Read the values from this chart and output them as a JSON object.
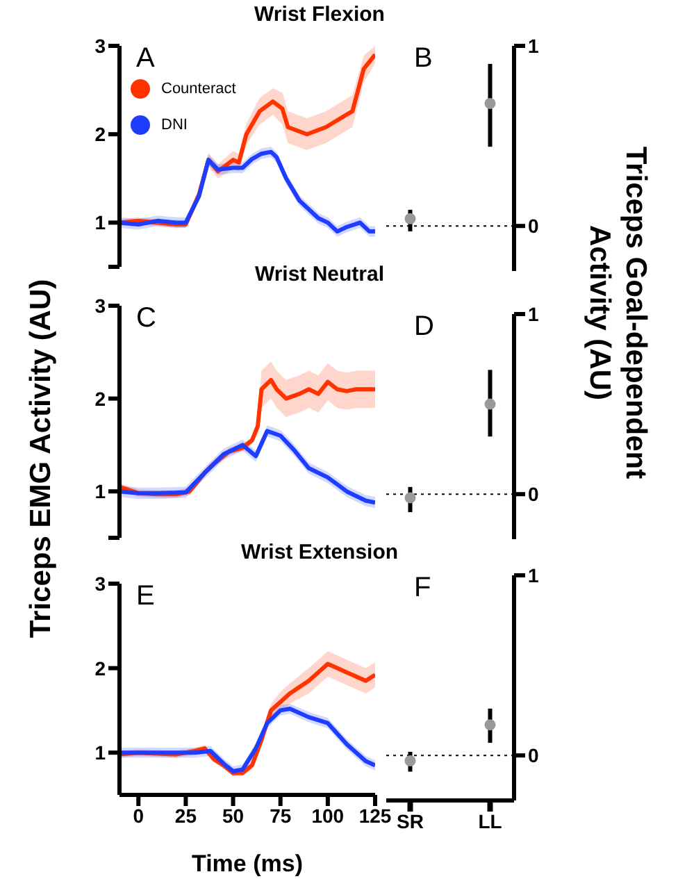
{
  "chart_data": [
    {
      "type": "line",
      "title": "Wrist Flexion",
      "xlim": [
        -10,
        125
      ],
      "ylim": [
        0.5,
        3
      ],
      "yticks": [
        {
          "value": 0.5,
          "label": null
        },
        1,
        2,
        3
      ],
      "tick_labels": "y",
      "legend": "top left",
      "annotations": [
        "A"
      ],
      "series": [
        {
          "name": "Counteract",
          "color": "#ff3300",
          "x": [
            -10,
            0,
            10,
            20,
            25,
            32,
            37,
            42,
            50,
            53,
            57,
            64,
            71,
            76,
            79,
            89,
            99,
            109,
            113,
            119,
            125
          ],
          "values": [
            1.0,
            1.02,
            1.0,
            0.98,
            0.98,
            1.32,
            1.71,
            1.58,
            1.71,
            1.68,
            2.0,
            2.26,
            2.37,
            2.29,
            2.08,
            2.0,
            2.08,
            2.21,
            2.26,
            2.74,
            2.9
          ],
          "lower": [
            0.96,
            0.98,
            0.96,
            0.94,
            0.94,
            1.26,
            1.63,
            1.5,
            1.61,
            1.58,
            1.88,
            2.11,
            2.22,
            2.11,
            1.9,
            1.82,
            1.9,
            2.03,
            2.08,
            2.59,
            2.8
          ],
          "upper": [
            1.04,
            1.06,
            1.04,
            1.02,
            1.02,
            1.38,
            1.79,
            1.66,
            1.81,
            1.78,
            2.12,
            2.41,
            2.52,
            2.47,
            2.26,
            2.18,
            2.26,
            2.39,
            2.44,
            2.89,
            3.0
          ]
        },
        {
          "name": "DNI",
          "color": "#1f3dff",
          "x": [
            -10,
            0,
            10,
            20,
            25,
            32,
            37,
            42,
            50,
            55,
            60,
            65,
            70,
            73,
            78,
            85,
            95,
            100,
            105,
            110,
            117,
            122,
            125
          ],
          "values": [
            1.0,
            0.98,
            1.02,
            1.0,
            1.0,
            1.3,
            1.71,
            1.6,
            1.62,
            1.62,
            1.72,
            1.78,
            1.8,
            1.74,
            1.5,
            1.25,
            1.05,
            1.0,
            0.9,
            0.95,
            1.0,
            0.9,
            0.9
          ],
          "lower": [
            0.94,
            0.92,
            0.96,
            0.94,
            0.94,
            1.24,
            1.65,
            1.54,
            1.56,
            1.56,
            1.66,
            1.72,
            1.74,
            1.68,
            1.44,
            1.19,
            0.99,
            0.94,
            0.84,
            0.89,
            0.94,
            0.84,
            0.84
          ],
          "upper": [
            1.06,
            1.04,
            1.08,
            1.06,
            1.06,
            1.36,
            1.77,
            1.66,
            1.68,
            1.68,
            1.78,
            1.84,
            1.86,
            1.8,
            1.56,
            1.31,
            1.11,
            1.06,
            0.96,
            1.01,
            1.06,
            0.96,
            0.96
          ]
        }
      ]
    },
    {
      "type": "scatter",
      "categories": [
        null,
        null
      ],
      "values": [
        0.04,
        0.68
      ],
      "errors": [
        [
          -0.03,
          0.09
        ],
        [
          0.44,
          0.9
        ]
      ],
      "color": "#999999",
      "ylim": [
        -0.25,
        1
      ],
      "yticks": [
        0,
        1
      ],
      "tick_labels": "y",
      "ref_lines": [
        {
          "axis": "y",
          "value": 0,
          "line_style": "dotted"
        }
      ],
      "annotations": [
        "B"
      ]
    },
    {
      "type": "line",
      "title": "Wrist Neutral",
      "ylabel": "Triceps EMG Activity (AU)",
      "xlim": [
        -10,
        125
      ],
      "ylim": [
        0.5,
        3
      ],
      "yticks": [
        {
          "value": 0.5,
          "label": null
        },
        1,
        2,
        3
      ],
      "tick_labels": "y",
      "annotations": [
        "C"
      ],
      "series": [
        {
          "color": "#ff3300",
          "x": [
            -10,
            0,
            10,
            20,
            27,
            35,
            40,
            48,
            55,
            60,
            63,
            65,
            70,
            73,
            78,
            85,
            90,
            95,
            100,
            105,
            110,
            115,
            125
          ],
          "values": [
            1.05,
            0.98,
            0.97,
            0.97,
            1.0,
            1.2,
            1.3,
            1.43,
            1.47,
            1.55,
            1.7,
            2.1,
            2.2,
            2.1,
            2.0,
            2.05,
            2.1,
            2.05,
            2.18,
            2.1,
            2.08,
            2.1,
            2.1
          ],
          "lower": [
            1.01,
            0.94,
            0.93,
            0.93,
            0.96,
            1.16,
            1.26,
            1.39,
            1.43,
            1.51,
            1.62,
            1.9,
            2.0,
            1.9,
            1.8,
            1.85,
            1.9,
            1.85,
            1.98,
            1.9,
            1.88,
            1.9,
            1.9
          ],
          "upper": [
            1.09,
            1.02,
            1.01,
            1.01,
            1.04,
            1.24,
            1.34,
            1.47,
            1.51,
            1.59,
            1.78,
            2.3,
            2.4,
            2.3,
            2.2,
            2.25,
            2.3,
            2.25,
            2.38,
            2.3,
            2.28,
            2.3,
            2.3
          ]
        },
        {
          "color": "#1f3dff",
          "x": [
            -10,
            0,
            10,
            25,
            35,
            45,
            55,
            62,
            68,
            75,
            82,
            90,
            100,
            110,
            120,
            125
          ],
          "values": [
            1.0,
            0.98,
            0.98,
            0.99,
            1.2,
            1.4,
            1.5,
            1.38,
            1.65,
            1.6,
            1.45,
            1.25,
            1.15,
            1.0,
            0.9,
            0.88
          ],
          "lower": [
            0.94,
            0.92,
            0.92,
            0.93,
            1.14,
            1.34,
            1.44,
            1.32,
            1.59,
            1.54,
            1.39,
            1.19,
            1.09,
            0.94,
            0.84,
            0.82
          ],
          "upper": [
            1.06,
            1.04,
            1.04,
            1.05,
            1.26,
            1.46,
            1.56,
            1.44,
            1.71,
            1.66,
            1.51,
            1.31,
            1.21,
            1.06,
            0.96,
            0.94
          ]
        }
      ]
    },
    {
      "type": "scatter",
      "ylabel": "Triceps Goal-dependent Activity (AU)",
      "categories": [
        null,
        null
      ],
      "values": [
        -0.02,
        0.5
      ],
      "errors": [
        [
          -0.1,
          0.04
        ],
        [
          0.32,
          0.69
        ]
      ],
      "color": "#999999",
      "ylim": [
        -0.25,
        1
      ],
      "yticks": [
        0,
        1
      ],
      "tick_labels": "y",
      "ref_lines": [
        {
          "axis": "y",
          "value": 0,
          "line_style": "dotted"
        }
      ],
      "annotations": [
        "D"
      ]
    },
    {
      "type": "line",
      "title": "Wrist Extension",
      "xlabel": "Time (ms)",
      "xlim": [
        -10,
        125
      ],
      "xticks": [
        0,
        25,
        50,
        75,
        100,
        125
      ],
      "ylim": [
        0.5,
        3
      ],
      "yticks": [
        1,
        2,
        3
      ],
      "annotations": [
        "E"
      ],
      "series": [
        {
          "color": "#ff3300",
          "x": [
            -10,
            0,
            20,
            30,
            35,
            40,
            45,
            50,
            55,
            60,
            65,
            70,
            75,
            80,
            90,
            100,
            105,
            110,
            120,
            125
          ],
          "values": [
            0.98,
            1.0,
            0.98,
            1.02,
            1.05,
            0.92,
            0.85,
            0.76,
            0.76,
            0.85,
            1.15,
            1.5,
            1.6,
            1.7,
            1.85,
            2.05,
            2.0,
            1.95,
            1.85,
            1.92
          ],
          "lower": [
            0.94,
            0.96,
            0.94,
            0.98,
            1.01,
            0.88,
            0.81,
            0.72,
            0.72,
            0.81,
            1.11,
            1.42,
            1.48,
            1.58,
            1.7,
            1.9,
            1.85,
            1.8,
            1.7,
            1.77
          ],
          "upper": [
            1.02,
            1.04,
            1.02,
            1.06,
            1.09,
            0.96,
            0.89,
            0.8,
            0.8,
            0.89,
            1.19,
            1.58,
            1.72,
            1.82,
            2.0,
            2.2,
            2.15,
            2.1,
            2.0,
            2.07
          ]
        },
        {
          "color": "#1f3dff",
          "x": [
            -10,
            0,
            30,
            38,
            45,
            50,
            55,
            62,
            68,
            75,
            80,
            90,
            100,
            110,
            120,
            125
          ],
          "values": [
            1.0,
            1.0,
            1.0,
            1.02,
            0.87,
            0.78,
            0.8,
            1.05,
            1.35,
            1.5,
            1.52,
            1.42,
            1.35,
            1.1,
            0.9,
            0.85
          ],
          "lower": [
            0.94,
            0.94,
            0.94,
            0.96,
            0.81,
            0.72,
            0.74,
            0.99,
            1.29,
            1.44,
            1.46,
            1.36,
            1.29,
            1.04,
            0.84,
            0.79
          ],
          "upper": [
            1.06,
            1.06,
            1.06,
            1.08,
            0.93,
            0.84,
            0.86,
            1.11,
            1.41,
            1.56,
            1.58,
            1.48,
            1.41,
            1.16,
            0.96,
            0.91
          ]
        }
      ]
    },
    {
      "type": "scatter",
      "categories": [
        "SR",
        "LL"
      ],
      "values": [
        -0.03,
        0.17
      ],
      "errors": [
        [
          -0.09,
          0.02
        ],
        [
          0.07,
          0.26
        ]
      ],
      "color": "#999999",
      "ylim": [
        -0.25,
        1
      ],
      "yticks": [
        0,
        1
      ],
      "ref_lines": [
        {
          "axis": "y",
          "value": 0,
          "line_style": "dotted"
        }
      ],
      "annotations": [
        "F"
      ]
    }
  ]
}
